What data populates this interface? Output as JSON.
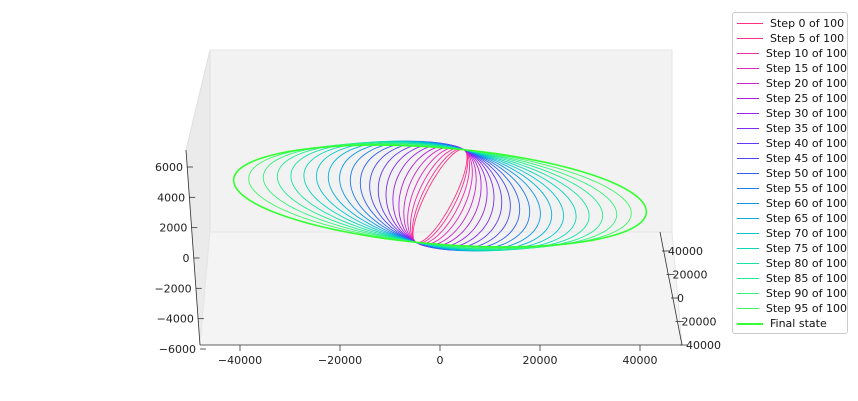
{
  "chart_data": {
    "type": "line3d",
    "title": "",
    "x_axis": {
      "ticks": [
        -40000,
        -20000,
        0,
        20000,
        40000
      ],
      "range": [
        -48000,
        48000
      ]
    },
    "y_axis": {
      "ticks": [
        40000,
        20000,
        0,
        20000,
        40000
      ],
      "tick_labels": [
        "40000",
        "20000",
        "0",
        "20000",
        "40000"
      ]
    },
    "z_axis": {
      "ticks": [
        6000,
        4000,
        2000,
        0,
        -2000,
        -4000,
        -6000
      ]
    },
    "series": [
      {
        "name": "Step 0 of 100",
        "color": "#ff3380"
      },
      {
        "name": "Step 5 of 100",
        "color": "#f83090"
      },
      {
        "name": "Step 10 of 100",
        "color": "#ee2aa5"
      },
      {
        "name": "Step 15 of 100",
        "color": "#e026bd"
      },
      {
        "name": "Step 20 of 100",
        "color": "#cc22d0"
      },
      {
        "name": "Step 25 of 100",
        "color": "#b21ee0"
      },
      {
        "name": "Step 30 of 100",
        "color": "#9a24ec"
      },
      {
        "name": "Step 35 of 100",
        "color": "#7f2cf4"
      },
      {
        "name": "Step 40 of 100",
        "color": "#6438f8"
      },
      {
        "name": "Step 45 of 100",
        "color": "#4a48fa"
      },
      {
        "name": "Step 50 of 100",
        "color": "#3060f8"
      },
      {
        "name": "Step 55 of 100",
        "color": "#1c7cf0"
      },
      {
        "name": "Step 60 of 100",
        "color": "#0e98e6"
      },
      {
        "name": "Step 65 of 100",
        "color": "#06b2dc"
      },
      {
        "name": "Step 70 of 100",
        "color": "#04c8cc"
      },
      {
        "name": "Step 75 of 100",
        "color": "#0ad8b8"
      },
      {
        "name": "Step 80 of 100",
        "color": "#14e4a4"
      },
      {
        "name": "Step 85 of 100",
        "color": "#22ee90"
      },
      {
        "name": "Step 90 of 100",
        "color": "#30f47c"
      },
      {
        "name": "Step 95 of 100",
        "color": "#3cf866"
      },
      {
        "name": "Final state",
        "color": "#33ff33",
        "bold": true
      }
    ],
    "orbits": {
      "final_semi_axis_x": 41000,
      "initial_semi_axis_x": 2500,
      "center": [
        0,
        0
      ]
    }
  }
}
